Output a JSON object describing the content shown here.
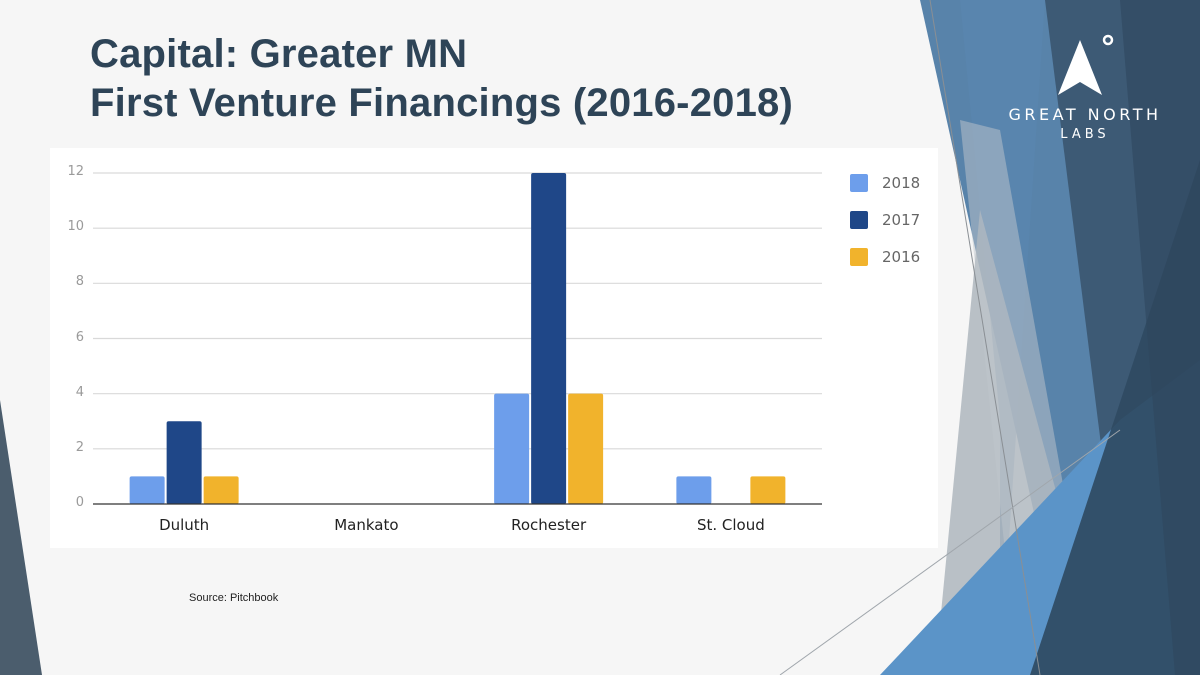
{
  "slide": {
    "title_line1": "Capital: Greater MN",
    "title_line2": "First Venture Financings (2016-2018)",
    "source": "Source: Pitchbook"
  },
  "logo": {
    "icon": "north-arrow-icon",
    "name_line1": "GREAT NORTH",
    "name_line2": "LABS"
  },
  "colors": {
    "title": "#2e4457",
    "series_2018": "#6d9eeb",
    "series_2017": "#1f4788",
    "series_2016": "#f1b32c"
  },
  "chart_data": {
    "type": "bar",
    "title": "Capital: Greater MN First Venture Financings (2016-2018)",
    "xlabel": "",
    "ylabel": "",
    "categories": [
      "Duluth",
      "Mankato",
      "Rochester",
      "St. Cloud"
    ],
    "series": [
      {
        "name": "2018",
        "color": "#6d9eeb",
        "values": [
          1,
          0,
          4,
          1
        ]
      },
      {
        "name": "2017",
        "color": "#1f4788",
        "values": [
          3,
          0,
          12,
          0
        ]
      },
      {
        "name": "2016",
        "color": "#f1b32c",
        "values": [
          1,
          0,
          4,
          1
        ]
      }
    ],
    "yticks": [
      "0",
      "2",
      "4",
      "6",
      "8",
      "10",
      "12"
    ],
    "ylim": [
      0,
      12
    ],
    "grid": true,
    "legend_position": "right",
    "source": "Source: Pitchbook"
  }
}
